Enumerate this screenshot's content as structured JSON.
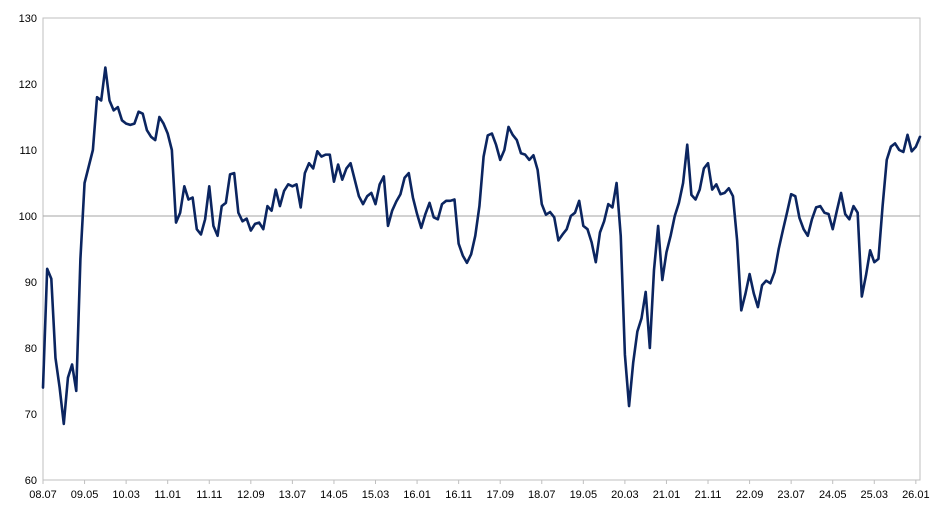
{
  "chart_data": {
    "type": "line",
    "title": "",
    "xlabel": "",
    "ylabel": "",
    "ylim": [
      60,
      130
    ],
    "yticks": [
      60,
      70,
      80,
      90,
      100,
      110,
      120,
      130
    ],
    "xtick_labels": [
      "08.07",
      "09.05",
      "10.03",
      "11.01",
      "11.11",
      "12.09",
      "13.07",
      "14.05",
      "15.03",
      "16.01",
      "16.11",
      "17.09",
      "18.07",
      "19.05",
      "20.03",
      "21.01",
      "21.11",
      "22.09",
      "23.07",
      "24.05",
      "25.03",
      "26.01"
    ],
    "xtick_positions": [
      0,
      10,
      20,
      30,
      40,
      50,
      60,
      70,
      80,
      90,
      100,
      110,
      120,
      130,
      140,
      150,
      160,
      170,
      180,
      190,
      200,
      210
    ],
    "reference_line": 100,
    "grid": false,
    "legend": "none",
    "series_color": "#0b2560",
    "reference_color": "#a6a6a6",
    "series": [
      {
        "values": [
          74.0,
          92.0,
          90.5,
          78.5,
          74.0,
          68.5,
          75.5,
          77.5,
          73.5,
          93.5,
          105.0,
          107.5,
          110.0,
          118.0,
          117.5,
          122.5,
          117.5,
          116.0,
          116.5,
          114.5,
          114.0,
          113.8,
          114.0,
          115.8,
          115.5,
          113.0,
          112.0,
          111.5,
          115.0,
          114.0,
          112.5,
          110.0,
          99.0,
          100.5,
          104.5,
          102.5,
          102.8,
          98.0,
          97.2,
          99.5,
          104.5,
          98.5,
          97.0,
          101.5,
          102.0,
          106.3,
          106.5,
          100.5,
          99.2,
          99.6,
          97.8,
          98.8,
          99.0,
          98.0,
          101.5,
          100.8,
          104.0,
          101.5,
          103.8,
          104.8,
          104.5,
          104.8,
          101.3,
          106.5,
          108.0,
          107.2,
          109.8,
          109.0,
          109.3,
          109.3,
          105.2,
          107.8,
          105.5,
          107.2,
          108.0,
          105.5,
          103.0,
          101.8,
          103.0,
          103.5,
          101.8,
          104.8,
          106.0,
          98.5,
          100.8,
          102.2,
          103.3,
          105.8,
          106.5,
          102.8,
          100.3,
          98.2,
          100.3,
          102.0,
          99.8,
          99.5,
          101.8,
          102.3,
          102.3,
          102.5,
          95.8,
          94.0,
          92.9,
          94.2,
          97.0,
          101.5,
          109.0,
          112.2,
          112.5,
          110.8,
          108.5,
          110.0,
          113.5,
          112.3,
          111.5,
          109.5,
          109.3,
          108.5,
          109.2,
          107.0,
          101.8,
          100.2,
          100.6,
          99.8,
          96.3,
          97.2,
          98.0,
          100.0,
          100.5,
          102.3,
          98.5,
          98.0,
          96.0,
          93.0,
          97.5,
          99.2,
          101.8,
          101.3,
          105.0,
          97.0,
          79.0,
          71.2,
          77.8,
          82.5,
          84.5,
          88.5,
          80.0,
          91.8,
          98.5,
          90.3,
          94.5,
          97.0,
          100.0,
          102.0,
          105.0,
          110.8,
          103.2,
          102.5,
          104.0,
          107.2,
          108.0,
          104.0,
          104.8,
          103.3,
          103.5,
          104.2,
          103.0,
          96.3,
          85.7,
          88.2,
          91.2,
          88.3,
          86.2,
          89.5,
          90.2,
          89.8,
          91.5,
          95.0,
          97.8,
          100.5,
          103.3,
          103.0,
          99.7,
          98.0,
          97.0,
          99.5,
          101.3,
          101.5,
          100.5,
          100.3,
          98.0,
          100.8,
          103.5,
          100.3,
          99.5,
          101.5,
          100.5,
          87.8,
          91.0,
          94.8,
          93.0,
          93.5,
          101.5,
          108.5,
          110.5,
          111.0,
          110.0,
          109.7,
          112.3,
          109.8,
          110.5,
          112.0
        ]
      }
    ]
  }
}
